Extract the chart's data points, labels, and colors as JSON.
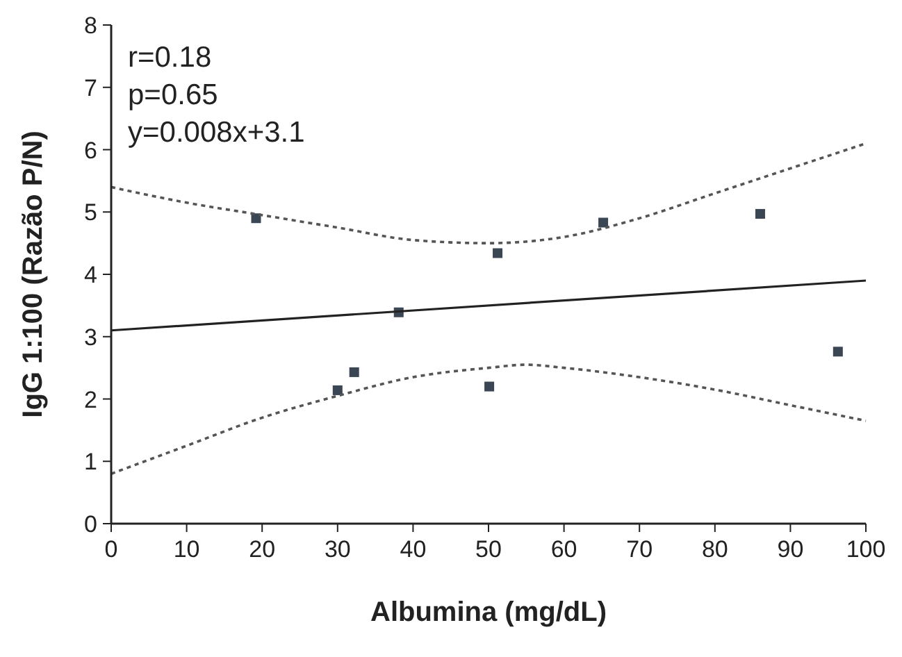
{
  "chart_data": {
    "type": "scatter",
    "xlabel": "Albumina (mg/dL)",
    "ylabel": "IgG 1:100 (Razão P/N)",
    "annotations": [
      "r=0.18",
      "p=0.65",
      "y=0.008x+3.1"
    ],
    "xlim": [
      0,
      100
    ],
    "ylim": [
      0,
      8
    ],
    "xticks": [
      0,
      10,
      20,
      30,
      40,
      50,
      60,
      70,
      80,
      90,
      100
    ],
    "yticks": [
      0,
      1,
      2,
      3,
      4,
      5,
      6,
      7,
      8
    ],
    "grid": false,
    "marker": "square",
    "series": [
      {
        "color": "#3a4654",
        "x": [
          19.2,
          30,
          32.2,
          38.1,
          50.1,
          51.2,
          65.2,
          86,
          96.3
        ],
        "values": [
          4.9,
          2.14,
          2.43,
          3.39,
          2.2,
          4.34,
          4.83,
          4.97,
          2.76
        ]
      },
      {
        "type": "line",
        "color": "#222222",
        "line_style": "solid",
        "marker": "none",
        "x": [
          0,
          100
        ],
        "values": [
          3.1,
          3.9
        ]
      },
      {
        "type": "line",
        "color": "#555555",
        "line_style": "dotted",
        "marker": "none",
        "x": [
          0,
          10,
          20,
          30,
          40,
          50,
          60,
          70,
          80,
          90,
          100
        ],
        "values": [
          5.4,
          5.15,
          4.95,
          4.75,
          4.55,
          4.5,
          4.6,
          4.9,
          5.3,
          5.7,
          6.1
        ]
      },
      {
        "type": "line",
        "color": "#555555",
        "line_style": "dotted",
        "marker": "none",
        "x": [
          0,
          10,
          20,
          30,
          40,
          50,
          55,
          60,
          70,
          80,
          90,
          100
        ],
        "values": [
          0.8,
          1.25,
          1.7,
          2.05,
          2.35,
          2.5,
          2.55,
          2.5,
          2.35,
          2.15,
          1.9,
          1.65
        ]
      }
    ]
  }
}
